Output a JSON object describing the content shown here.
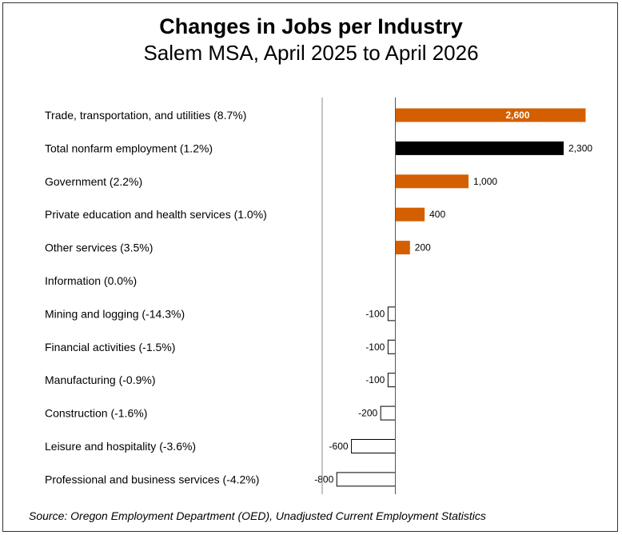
{
  "chart_data": {
    "type": "bar",
    "orientation": "horizontal",
    "title": "Changes in Jobs per Industry",
    "subtitle": "Salem MSA, April 2025 to April 2026",
    "categories": [
      "Trade, transportation, and utilities (8.7%)",
      "Total nonfarm employment (1.2%)",
      "Government (2.2%)",
      "Private education and health services (1.0%)",
      "Other services (3.5%)",
      "Information (0.0%)",
      "Mining and logging (-14.3%)",
      "Financial activities (-1.5%)",
      "Manufacturing (-0.9%)",
      "Construction (-1.6%)",
      "Leisure and hospitality (-3.6%)",
      "Professional and business services (-4.2%)"
    ],
    "values": [
      2600,
      2300,
      1000,
      400,
      200,
      0,
      -100,
      -100,
      -100,
      -200,
      -600,
      -800
    ],
    "value_labels": [
      "2,600",
      "2,300",
      "1,000",
      "400",
      "200",
      "",
      "-100",
      "-100",
      "-100",
      "-200",
      "-600",
      "-800"
    ],
    "colors": {
      "positive": "#d45f00",
      "total": "#000000",
      "negative_fill": "#ffffff",
      "negative_stroke": "#000000"
    },
    "total_category_index": 1,
    "xlim": [
      -1000,
      2700
    ],
    "grid": false,
    "xlabel": "",
    "ylabel": ""
  },
  "source": "Source: Oregon Employment Department (OED), Unadjusted Current Employment Statistics"
}
